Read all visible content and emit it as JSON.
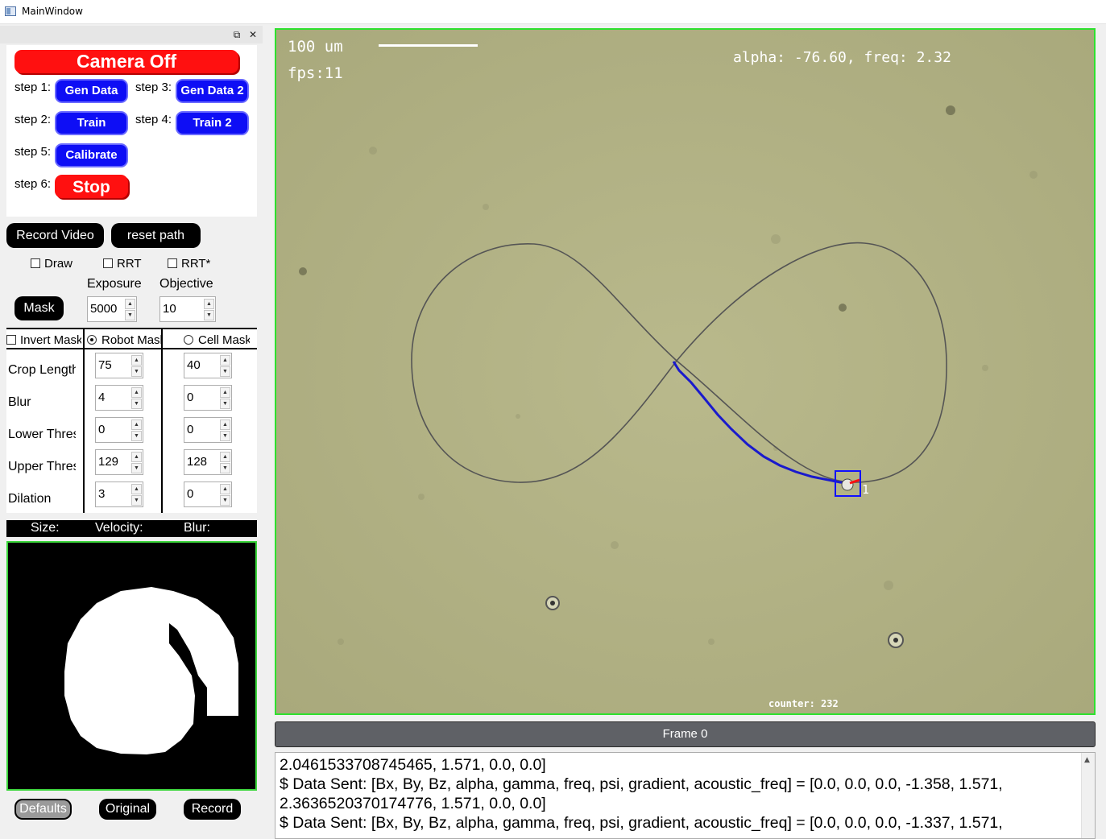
{
  "window": {
    "title": "MainWindow"
  },
  "dock": {
    "float_icon": "restore-icon",
    "close_icon": "close-icon"
  },
  "controls": {
    "camera_button": "Camera Off",
    "steps": [
      {
        "label": "step 1:",
        "button": "Gen Data"
      },
      {
        "label": "step 3:",
        "button": "Gen Data 2"
      },
      {
        "label": "step 2:",
        "button": "Train"
      },
      {
        "label": "step 4:",
        "button": "Train 2"
      },
      {
        "label": "step 5:",
        "button": "Calibrate"
      },
      {
        "label": "step 6:",
        "button": "Stop"
      }
    ],
    "record_video": "Record Video",
    "reset_path": "reset path",
    "draw": "Draw",
    "rrt": "RRT",
    "rrt_star": "RRT*",
    "mask": "Mask",
    "exposure": {
      "label": "Exposure",
      "value": "5000"
    },
    "objective": {
      "label": "Objective",
      "value": "10"
    }
  },
  "mask_table": {
    "invert": "Invert Mask",
    "robot_mask": "Robot Mask",
    "cell_mask": "Cell Mask",
    "rows": [
      {
        "label": "Crop Length",
        "robot": "75",
        "cell": "40"
      },
      {
        "label": "Blur",
        "robot": "4",
        "cell": "0"
      },
      {
        "label": "Lower Threshold",
        "robot": "0",
        "cell": "0"
      },
      {
        "label": "Upper Threshold",
        "robot": "129",
        "cell": "128"
      },
      {
        "label": "Dilation",
        "robot": "3",
        "cell": "0"
      }
    ]
  },
  "stats": {
    "size": "Size:",
    "velocity": "Velocity:",
    "blur": "Blur:"
  },
  "bottom_buttons": {
    "defaults": "Defaults",
    "original": "Original",
    "record": "Record"
  },
  "camera": {
    "scale_label": "100 um",
    "fps": "fps:11",
    "alpha_freq": "alpha: -76.60, freq: 2.32",
    "counter": "counter: 232",
    "robot_id": "1"
  },
  "frame_label": "Frame 0",
  "console": {
    "lines": [
      "2.0461533708745465, 1.571, 0.0, 0.0]",
      "$ Data Sent:  [Bx, By, Bz, alpha, gamma, freq, psi, gradient, acoustic_freq] = [0.0, 0.0, 0.0, -1.358, 1.571,",
      "2.3636520370174776, 1.571, 0.0, 0.0]",
      "$ Data Sent:  [Bx, By, Bz, alpha, gamma, freq, psi, gradient, acoustic_freq] = [0.0, 0.0, 0.0, -1.337, 1.571,"
    ]
  },
  "colors": {
    "accent_red": "#ff1010",
    "accent_blue": "#0e0ef5",
    "view_border": "#2ee02e",
    "path": "#1a1acc"
  }
}
